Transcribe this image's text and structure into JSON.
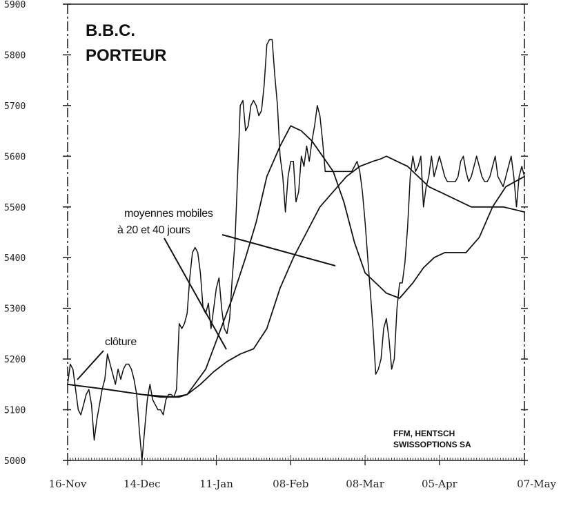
{
  "chart_data": {
    "type": "line",
    "title": "B.B.C.",
    "subtitle": "PORTEUR",
    "source": [
      "FFM, HENTSCH",
      "SWISSOPTIONS SA"
    ],
    "annotations": [
      "moyennes mobiles",
      "à 20 et 40 jours",
      "clôture"
    ],
    "ylim": [
      5000,
      5900
    ],
    "yticks": [
      "5900",
      "5800",
      "5700",
      "5600",
      "5500",
      "5400",
      "5300",
      "5200",
      "5100",
      "5000"
    ],
    "xticks": [
      "16-Nov",
      "14-Dec",
      "11-Jan",
      "08-Feb",
      "08-Mar",
      "05-Apr",
      "07-May"
    ],
    "x_range_days": [
      0,
      172
    ],
    "xtick_days": [
      0,
      28,
      56,
      84,
      112,
      140,
      172
    ],
    "grid": false,
    "series": [
      {
        "name": "clôture",
        "x": [
          0,
          1,
          2,
          4,
          5,
          6,
          7,
          8,
          9,
          10,
          11,
          12,
          13,
          14,
          15,
          16,
          17,
          18,
          19,
          20,
          21,
          22,
          23,
          24,
          25,
          26,
          27,
          28,
          29,
          30,
          31,
          32,
          33,
          34,
          35,
          36,
          37,
          38,
          39,
          40,
          41,
          42,
          43,
          44,
          45,
          46,
          47,
          48,
          49,
          50,
          51,
          52,
          53,
          54,
          55,
          56,
          57,
          58,
          59,
          60,
          61,
          62,
          63,
          64,
          65,
          66,
          67,
          68,
          69,
          70,
          71,
          72,
          73,
          74,
          75,
          76,
          77,
          78,
          79,
          80,
          81,
          82,
          83,
          84,
          85,
          86,
          87,
          88,
          89,
          90,
          91,
          92,
          93,
          94,
          95,
          96,
          97,
          98,
          99,
          100,
          101,
          102,
          103,
          104,
          105,
          106,
          107,
          108,
          109,
          110,
          111,
          112,
          113,
          114,
          115,
          116,
          117,
          118,
          119,
          120,
          121,
          122,
          123,
          124,
          125,
          126,
          127,
          128,
          129,
          130,
          131,
          132,
          133,
          134,
          135,
          136,
          137,
          138,
          139,
          140,
          141,
          142,
          143,
          144,
          145,
          146,
          147,
          148,
          149,
          150,
          151,
          152,
          153,
          154,
          155,
          156,
          157,
          158,
          159,
          160,
          161,
          162,
          163,
          164,
          165,
          166,
          167,
          168,
          169,
          170,
          171,
          172
        ],
        "values": [
          5150,
          5190,
          5180,
          5100,
          5090,
          5110,
          5130,
          5140,
          5110,
          5040,
          5080,
          5110,
          5140,
          5160,
          5210,
          5190,
          5170,
          5150,
          5180,
          5160,
          5180,
          5190,
          5190,
          5180,
          5160,
          5130,
          5060,
          5000,
          5060,
          5120,
          5150,
          5120,
          5110,
          5100,
          5100,
          5090,
          5120,
          5130,
          5130,
          5125,
          5140,
          5270,
          5260,
          5270,
          5290,
          5360,
          5410,
          5420,
          5410,
          5370,
          5300,
          5290,
          5310,
          5260,
          5300,
          5340,
          5360,
          5300,
          5260,
          5250,
          5280,
          5360,
          5430,
          5560,
          5700,
          5710,
          5650,
          5660,
          5700,
          5710,
          5700,
          5680,
          5690,
          5740,
          5820,
          5830,
          5830,
          5760,
          5700,
          5600,
          5560,
          5490,
          5560,
          5590,
          5590,
          5510,
          5530,
          5600,
          5580,
          5620,
          5590,
          5630,
          5660,
          5700,
          5680,
          5630,
          5570,
          5570,
          5570,
          5570,
          5570,
          5570,
          5570,
          5570,
          5570,
          5570,
          5570,
          5580,
          5590,
          5570,
          5530,
          5470,
          5400,
          5330,
          5260,
          5170,
          5180,
          5200,
          5260,
          5280,
          5240,
          5180,
          5200,
          5300,
          5350,
          5350,
          5390,
          5460,
          5560,
          5600,
          5570,
          5580,
          5600,
          5500,
          5540,
          5560,
          5600,
          5560,
          5580,
          5600,
          5580,
          5560,
          5550,
          5550,
          5550,
          5550,
          5560,
          5590,
          5600,
          5570,
          5550,
          5560,
          5580,
          5600,
          5580,
          5560,
          5550,
          5550,
          5560,
          5580,
          5600,
          5560,
          5550,
          5540,
          5560,
          5580,
          5600,
          5560,
          5500,
          5560,
          5580,
          5560
        ]
      },
      {
        "name": "moyenne mobile 20 jours",
        "x": [
          0,
          15,
          28,
          35,
          42,
          45,
          52,
          57,
          62,
          67,
          71,
          75,
          80,
          84,
          88,
          92,
          96,
          100,
          104,
          108,
          112,
          116,
          120,
          125,
          130,
          134,
          138,
          142,
          146,
          150,
          155,
          160,
          165,
          172
        ],
        "values": [
          5150,
          5140,
          5130,
          5125,
          5125,
          5130,
          5180,
          5250,
          5320,
          5400,
          5470,
          5560,
          5620,
          5660,
          5650,
          5630,
          5600,
          5570,
          5510,
          5430,
          5370,
          5350,
          5330,
          5320,
          5350,
          5380,
          5400,
          5410,
          5410,
          5410,
          5440,
          5500,
          5540,
          5560
        ]
      },
      {
        "name": "moyenne mobile 40 jours",
        "x": [
          0,
          15,
          28,
          40,
          45,
          50,
          55,
          60,
          65,
          70,
          75,
          80,
          85,
          90,
          95,
          100,
          105,
          110,
          115,
          118,
          120,
          124,
          128,
          132,
          136,
          140,
          144,
          148,
          152,
          156,
          160,
          164,
          168,
          172
        ],
        "values": [
          5150,
          5140,
          5130,
          5125,
          5130,
          5150,
          5175,
          5195,
          5210,
          5220,
          5260,
          5340,
          5400,
          5450,
          5500,
          5530,
          5560,
          5580,
          5590,
          5595,
          5600,
          5590,
          5580,
          5560,
          5540,
          5530,
          5520,
          5510,
          5500,
          5500,
          5500,
          5500,
          5495,
          5490
        ]
      }
    ]
  }
}
